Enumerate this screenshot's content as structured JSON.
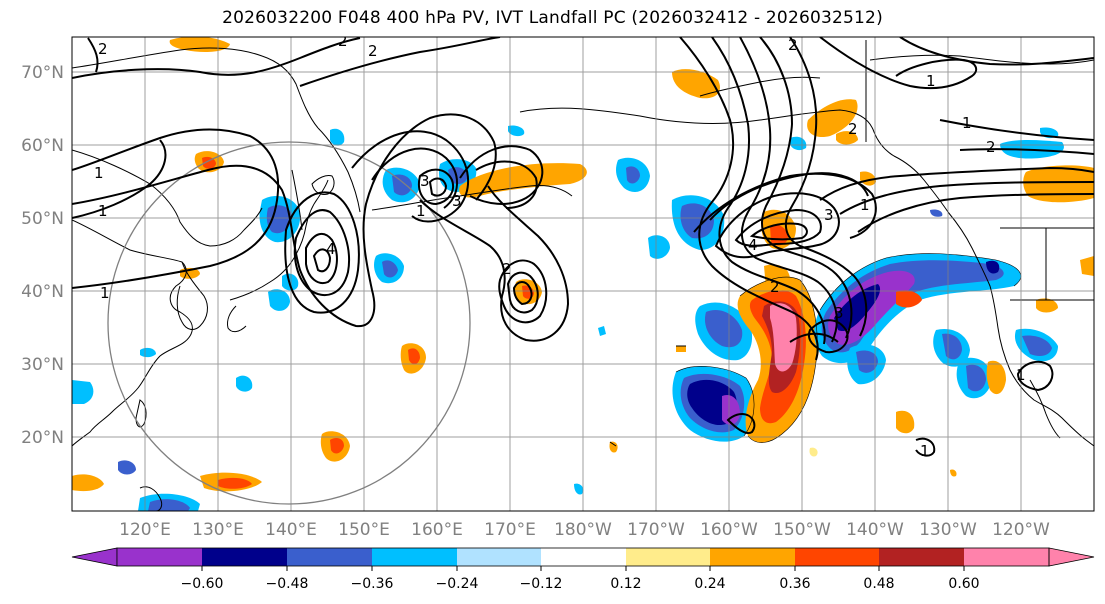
{
  "title": "2026032200 F048 400 hPa PV, IVT Landfall PC (2026032412 - 2026032512)",
  "lat_labels": [
    "70°N",
    "60°N",
    "50°N",
    "40°N",
    "30°N",
    "20°N"
  ],
  "lon_labels": [
    "120°E",
    "130°E",
    "140°E",
    "150°E",
    "160°E",
    "170°E",
    "180°W",
    "170°W",
    "160°W",
    "150°W",
    "140°W",
    "130°W",
    "120°W"
  ],
  "contour_labels": [
    "1",
    "1",
    "1",
    "2",
    "2",
    "2",
    "3",
    "3",
    "4",
    "2",
    "1",
    "2",
    "2",
    "3",
    "2",
    "4",
    "3",
    "1",
    "1",
    "1",
    "2",
    "1",
    "1"
  ],
  "colorbar": {
    "colors": [
      "#9932CC",
      "#00008B",
      "#3A5FCD",
      "#00BFFF",
      "#B0E2FF",
      "#FFFFFF",
      "#FFEC8B",
      "#FFA500",
      "#FF4500",
      "#B22222",
      "#FF82AB"
    ],
    "tick_labels": [
      "−0.60",
      "−0.48",
      "−0.36",
      "−0.24",
      "−0.12",
      "0.12",
      "0.24",
      "0.36",
      "0.48",
      "0.60"
    ]
  }
}
